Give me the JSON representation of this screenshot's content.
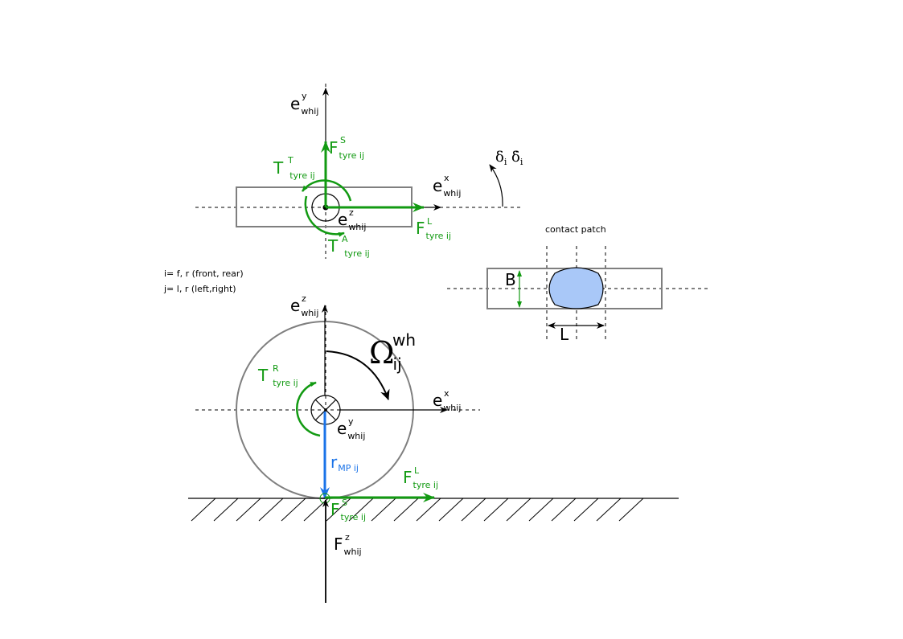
{
  "colors": {
    "force_green": "#129a12",
    "radius_blue": "#1a73e8",
    "patch_fill": "#a9c8f8",
    "frame_gray": "#7f7f7f",
    "axis_black": "#000000"
  },
  "top_view": {
    "axis_y": {
      "base": "e",
      "sup": "y",
      "sub": "whij"
    },
    "axis_x": {
      "base": "e",
      "sup": "x",
      "sub": "whij"
    },
    "axis_z": {
      "base": "e",
      "sup": "z",
      "sub": "whij"
    },
    "force_side": {
      "base": "F",
      "sup": "S",
      "sub": "tyre ij"
    },
    "force_long": {
      "base": "F",
      "sup": "L",
      "sub": "tyre ij"
    },
    "torque_t": {
      "base": "T",
      "sup": "T",
      "sub": "tyre ij"
    },
    "torque_a": {
      "base": "T",
      "sup": "A",
      "sub": "tyre ij"
    },
    "steer_angle": {
      "base": "δ",
      "sub": "i"
    },
    "steer_rate": {
      "base": "δ̇",
      "sub": "i"
    }
  },
  "legend": {
    "line1": "i= f, r (front, rear)",
    "line2": "j= l, r (left,right)"
  },
  "contact_patch": {
    "title": "contact patch",
    "width_label": "B",
    "length_label": "L"
  },
  "side_view": {
    "axis_z": {
      "base": "e",
      "sup": "z",
      "sub": "whij"
    },
    "axis_x": {
      "base": "e",
      "sup": "x",
      "sub": "whij"
    },
    "axis_y": {
      "base": "e",
      "sup": "y",
      "sub": "whij"
    },
    "omega": {
      "base": "Ω",
      "sup": "wh",
      "sub": "ij"
    },
    "torque_r": {
      "base": "T",
      "sup": "R",
      "sub": "tyre ij"
    },
    "radius": {
      "base": "r",
      "sub": "MP ij"
    },
    "force_long": {
      "base": "F",
      "sup": "L",
      "sub": "tyre ij"
    },
    "force_side": {
      "base": "F",
      "sup": "S",
      "sub": "tyre ij"
    },
    "force_vert": {
      "base": "F",
      "sup": "z",
      "sub": "whij"
    }
  }
}
